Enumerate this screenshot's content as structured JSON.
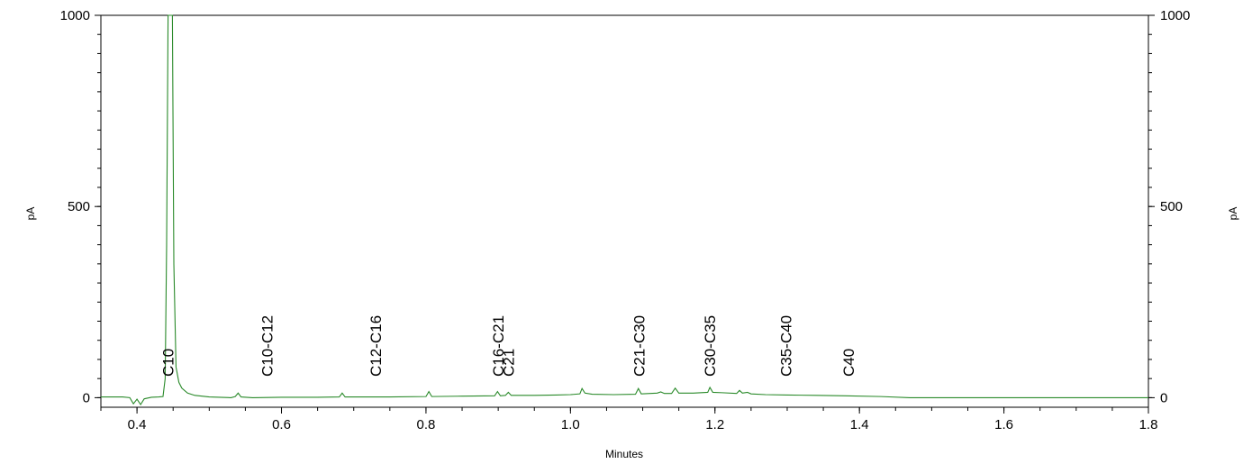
{
  "chart_data": {
    "type": "line",
    "title": "",
    "xlabel": "Minutes",
    "ylabel_left": "pA",
    "ylabel_right": "pA",
    "xlim": [
      0.35,
      1.8
    ],
    "ylim": [
      -25,
      1000
    ],
    "x_ticks": [
      0.4,
      0.6,
      0.8,
      1.0,
      1.2,
      1.4,
      1.6,
      1.8
    ],
    "x_tick_labels": [
      "0.4",
      "0.6",
      "0.8",
      "1.0",
      "1.2",
      "1.4",
      "1.6",
      "1.8"
    ],
    "y_ticks": [
      0,
      500,
      1000
    ],
    "y_tick_labels": [
      "0",
      "500",
      "1000"
    ],
    "right_y_tick_labels": [
      "0",
      "500",
      "1000"
    ],
    "grid": false,
    "line_color": "#2a8a2a",
    "series": [
      {
        "points": [
          [
            0.35,
            2
          ],
          [
            0.38,
            2
          ],
          [
            0.39,
            0
          ],
          [
            0.395,
            -16
          ],
          [
            0.4,
            -4
          ],
          [
            0.405,
            -18
          ],
          [
            0.41,
            -3
          ],
          [
            0.42,
            1
          ],
          [
            0.43,
            2
          ],
          [
            0.436,
            3
          ],
          [
            0.439,
            50
          ],
          [
            0.441,
            400
          ],
          [
            0.443,
            1100
          ],
          [
            0.449,
            1100
          ],
          [
            0.451,
            350
          ],
          [
            0.454,
            80
          ],
          [
            0.458,
            40
          ],
          [
            0.462,
            25
          ],
          [
            0.47,
            12
          ],
          [
            0.48,
            6
          ],
          [
            0.5,
            2
          ],
          [
            0.53,
            0
          ],
          [
            0.536,
            3
          ],
          [
            0.54,
            12
          ],
          [
            0.544,
            2
          ],
          [
            0.56,
            0
          ],
          [
            0.6,
            1
          ],
          [
            0.65,
            1
          ],
          [
            0.68,
            2
          ],
          [
            0.684,
            12
          ],
          [
            0.688,
            2
          ],
          [
            0.75,
            2
          ],
          [
            0.8,
            3
          ],
          [
            0.804,
            16
          ],
          [
            0.808,
            3
          ],
          [
            0.85,
            4
          ],
          [
            0.895,
            5
          ],
          [
            0.899,
            16
          ],
          [
            0.903,
            5
          ],
          [
            0.91,
            6
          ],
          [
            0.914,
            14
          ],
          [
            0.918,
            6
          ],
          [
            0.95,
            6
          ],
          [
            0.98,
            7
          ],
          [
            1.0,
            8
          ],
          [
            1.013,
            10
          ],
          [
            1.016,
            24
          ],
          [
            1.02,
            12
          ],
          [
            1.03,
            9
          ],
          [
            1.06,
            8
          ],
          [
            1.09,
            9
          ],
          [
            1.094,
            24
          ],
          [
            1.098,
            10
          ],
          [
            1.12,
            12
          ],
          [
            1.125,
            15
          ],
          [
            1.13,
            11
          ],
          [
            1.14,
            11
          ],
          [
            1.145,
            25
          ],
          [
            1.15,
            12
          ],
          [
            1.17,
            12
          ],
          [
            1.19,
            14
          ],
          [
            1.193,
            27
          ],
          [
            1.197,
            14
          ],
          [
            1.21,
            13
          ],
          [
            1.23,
            11
          ],
          [
            1.234,
            19
          ],
          [
            1.238,
            12
          ],
          [
            1.245,
            14
          ],
          [
            1.25,
            10
          ],
          [
            1.27,
            8
          ],
          [
            1.3,
            7
          ],
          [
            1.34,
            6
          ],
          [
            1.38,
            5
          ],
          [
            1.43,
            3
          ],
          [
            1.47,
            0
          ],
          [
            1.5,
            0
          ],
          [
            1.6,
            0
          ],
          [
            1.7,
            0
          ],
          [
            1.8,
            0
          ]
        ]
      }
    ],
    "annotations": [
      {
        "text": "C10",
        "x": 0.443
      },
      {
        "text": "C10-C12",
        "x": 0.58
      },
      {
        "text": "C12-C16",
        "x": 0.73
      },
      {
        "text": "C16-C21",
        "x": 0.9
      },
      {
        "text": "C21",
        "x": 0.914
      },
      {
        "text": "C21-C30",
        "x": 1.095
      },
      {
        "text": "C30-C35",
        "x": 1.193
      },
      {
        "text": "C35-C40",
        "x": 1.298
      },
      {
        "text": "C40",
        "x": 1.385
      }
    ]
  }
}
